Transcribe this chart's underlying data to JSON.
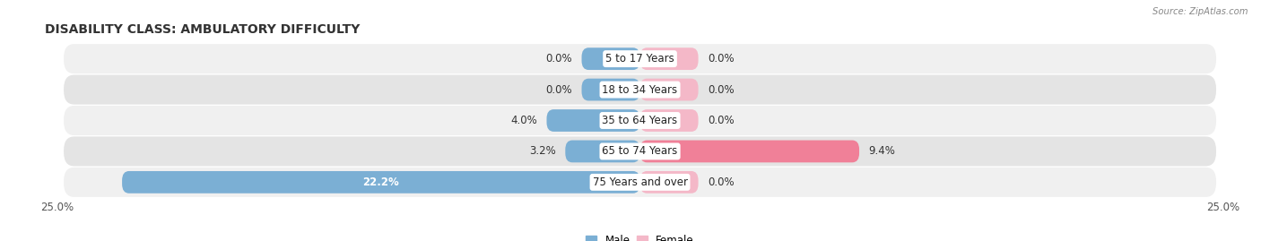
{
  "title": "DISABILITY CLASS: AMBULATORY DIFFICULTY",
  "source": "Source: ZipAtlas.com",
  "categories": [
    "5 to 17 Years",
    "18 to 34 Years",
    "35 to 64 Years",
    "65 to 74 Years",
    "75 Years and over"
  ],
  "male_values": [
    0.0,
    0.0,
    4.0,
    3.2,
    22.2
  ],
  "female_values": [
    0.0,
    0.0,
    0.0,
    9.4,
    0.0
  ],
  "male_min_display": 2.5,
  "female_min_display": 2.5,
  "max_val": 25.0,
  "male_color": "#7bafd4",
  "female_color": "#f08098",
  "female_color_light": "#f4b8c8",
  "male_label": "Male",
  "female_label": "Female",
  "row_colors": [
    "#f0f0f0",
    "#e4e4e4"
  ],
  "title_fontsize": 10,
  "label_fontsize": 8.5,
  "axis_label_fontsize": 8.5,
  "xlim_left": -25.0,
  "xlim_right": 25.0
}
